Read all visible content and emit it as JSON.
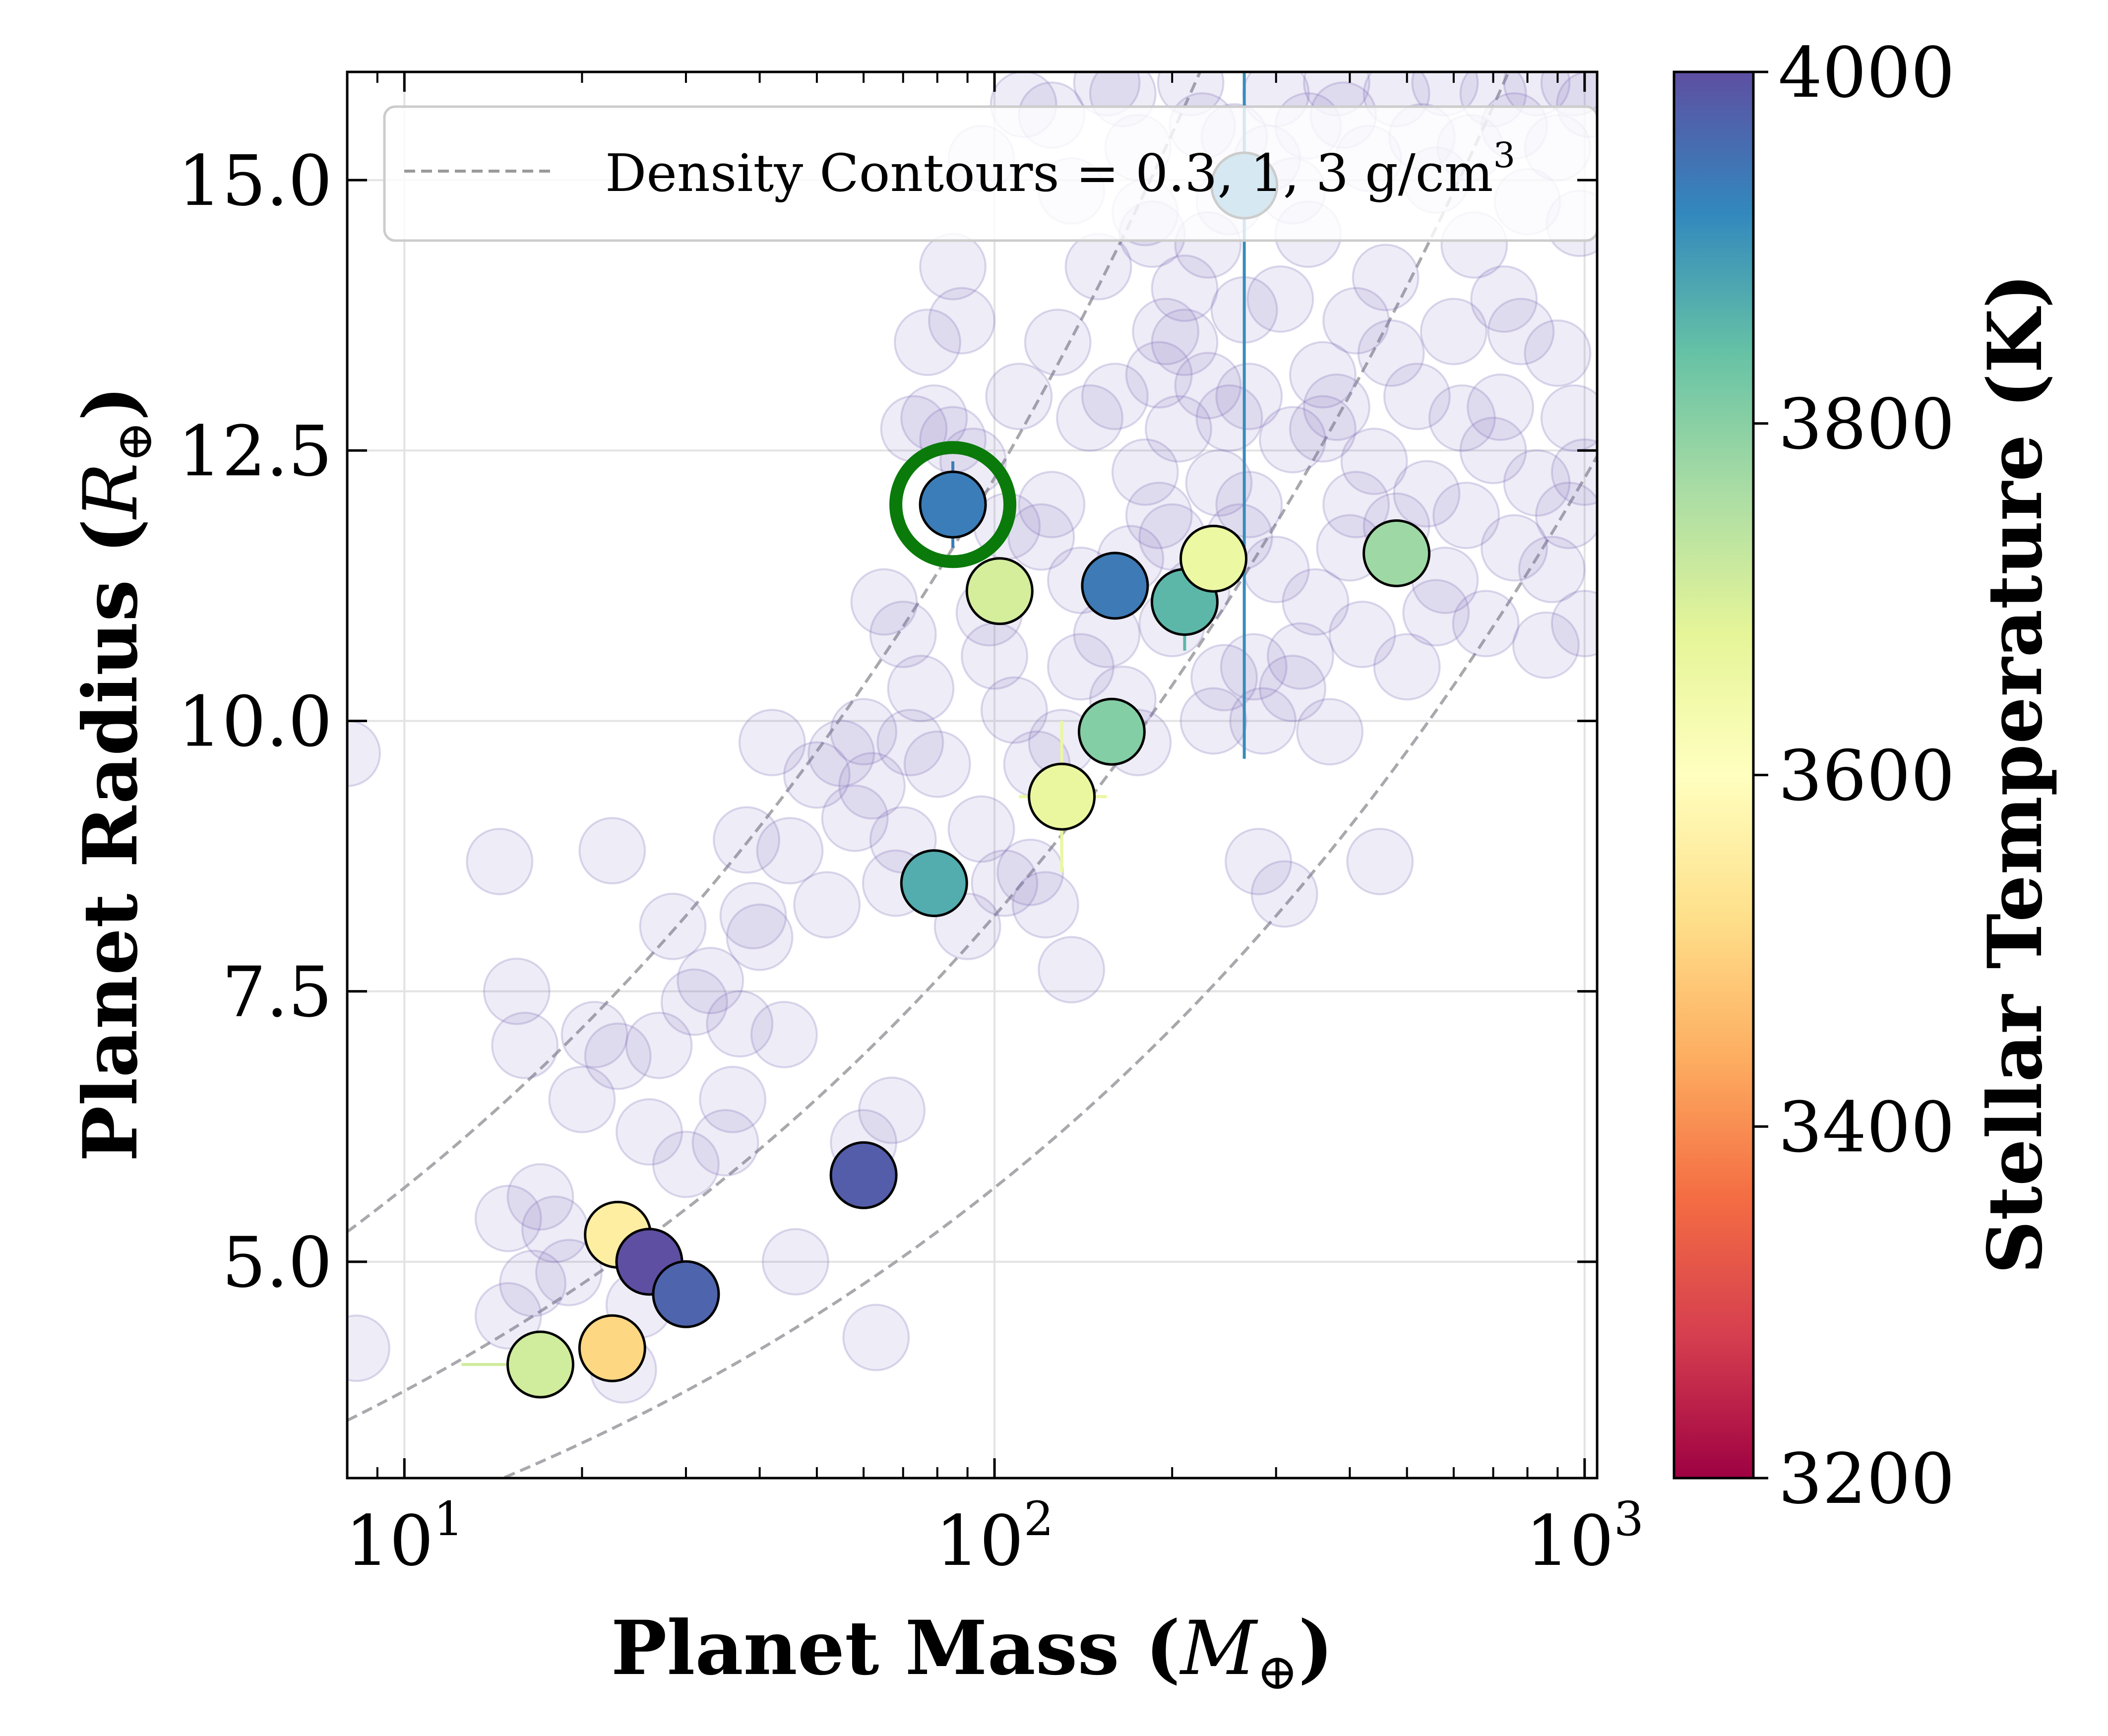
{
  "chart_data": {
    "type": "scatter",
    "xscale": "log",
    "xlim": [
      8,
      1050
    ],
    "ylim": [
      3.0,
      16.0
    ],
    "grid": true,
    "xlabel": {
      "main": "Planet Mass (",
      "var": "M",
      "sub": "⊕",
      "close": ")"
    },
    "ylabel": {
      "main": "Planet Radius (",
      "var": "R",
      "sub": "⊕",
      "close": ")"
    },
    "x_ticks": [
      {
        "value": 10,
        "base": "10",
        "exp": "1"
      },
      {
        "value": 100,
        "base": "10",
        "exp": "2"
      },
      {
        "value": 1000,
        "base": "10",
        "exp": "3"
      }
    ],
    "y_ticks": [
      {
        "value": 5.0,
        "label": "5.0"
      },
      {
        "value": 7.5,
        "label": "7.5"
      },
      {
        "value": 10.0,
        "label": "10.0"
      },
      {
        "value": 12.5,
        "label": "12.5"
      },
      {
        "value": 15.0,
        "label": "15.0"
      }
    ],
    "legend": {
      "position": "top-right",
      "label": "Density Contours = 0.3, 1, 3 g/cm",
      "label_sup": "3"
    },
    "density_contours": [
      0.3,
      1,
      3
    ],
    "colorbar": {
      "label": "Stellar Temperature (K)",
      "min": 3200,
      "max": 4000,
      "ticks": [
        {
          "value": 3200,
          "label": "3200"
        },
        {
          "value": 3400,
          "label": "3400"
        },
        {
          "value": 3600,
          "label": "3600"
        },
        {
          "value": 3800,
          "label": "3800"
        },
        {
          "value": 4000,
          "label": "4000"
        }
      ],
      "colormap": "Spectral",
      "background_color": "#7b6bb8"
    },
    "highlight": {
      "x": 85,
      "y": 12.0,
      "color": "#0a7a0a"
    },
    "series": [
      {
        "name": "Background population",
        "points": [
          [
            8.0,
            9.7
          ],
          [
            8.3,
            4.2
          ],
          [
            14.5,
            8.7
          ],
          [
            15.0,
            5.4
          ],
          [
            15.5,
            7.5
          ],
          [
            16.0,
            7.0
          ],
          [
            16.5,
            4.8
          ],
          [
            17.0,
            5.6
          ],
          [
            18.0,
            5.3
          ],
          [
            20.0,
            6.5
          ],
          [
            21.0,
            7.1
          ],
          [
            22.5,
            8.8
          ],
          [
            23.0,
            6.9
          ],
          [
            23.5,
            4.0
          ],
          [
            25.0,
            4.6
          ],
          [
            27.0,
            7.0
          ],
          [
            28.5,
            8.1
          ],
          [
            31.0,
            7.4
          ],
          [
            33.0,
            7.6
          ],
          [
            35.0,
            6.1
          ],
          [
            37.0,
            7.2
          ],
          [
            38.0,
            8.9
          ],
          [
            39.0,
            8.2
          ],
          [
            40.0,
            8.0
          ],
          [
            42.0,
            9.8
          ],
          [
            44.0,
            7.1
          ],
          [
            46.0,
            5.0
          ],
          [
            50.0,
            9.5
          ],
          [
            55.0,
            9.7
          ],
          [
            58.0,
            9.1
          ],
          [
            60.0,
            6.1
          ],
          [
            62.0,
            9.4
          ],
          [
            63.0,
            4.3
          ],
          [
            65.0,
            11.1
          ],
          [
            67.0,
            6.4
          ],
          [
            68.0,
            8.5
          ],
          [
            70.0,
            8.9
          ],
          [
            72.0,
            9.8
          ],
          [
            73.0,
            12.7
          ],
          [
            75.0,
            10.3
          ],
          [
            77.0,
            13.5
          ],
          [
            79.0,
            12.8
          ],
          [
            80.0,
            9.6
          ],
          [
            85.0,
            14.2
          ],
          [
            88.0,
            13.7
          ],
          [
            90.0,
            8.1
          ],
          [
            92.0,
            12.4
          ],
          [
            95.0,
            9.0
          ],
          [
            98.0,
            11.0
          ],
          [
            100.0,
            10.6
          ],
          [
            104.0,
            8.5
          ],
          [
            105.0,
            11.8
          ],
          [
            108.0,
            10.1
          ],
          [
            112.0,
            15.7
          ],
          [
            115.0,
            8.6
          ],
          [
            118.0,
            9.6
          ],
          [
            120.0,
            11.7
          ],
          [
            122.0,
            8.3
          ],
          [
            125.0,
            12.0
          ],
          [
            128.0,
            13.5
          ],
          [
            130.0,
            9.8
          ],
          [
            135.0,
            7.7
          ],
          [
            140.0,
            11.3
          ],
          [
            145.0,
            12.8
          ],
          [
            150.0,
            14.2
          ],
          [
            155.0,
            10.8
          ],
          [
            160.0,
            13.0
          ],
          [
            165.0,
            15.8
          ],
          [
            170.0,
            11.5
          ],
          [
            175.0,
            9.8
          ],
          [
            180.0,
            12.3
          ],
          [
            185.0,
            14.5
          ],
          [
            190.0,
            11.9
          ],
          [
            195.0,
            13.6
          ],
          [
            200.0,
            10.9
          ],
          [
            205.0,
            12.7
          ],
          [
            210.0,
            14.0
          ],
          [
            220.0,
            11.2
          ],
          [
            225.0,
            15.5
          ],
          [
            230.0,
            13.1
          ],
          [
            240.0,
            12.2
          ],
          [
            245.0,
            10.4
          ],
          [
            250.0,
            14.8
          ],
          [
            260.0,
            11.7
          ],
          [
            265.0,
            13.8
          ],
          [
            270.0,
            12.0
          ],
          [
            280.0,
            8.7
          ],
          [
            285.0,
            10.0
          ],
          [
            290.0,
            15.2
          ],
          [
            300.0,
            11.4
          ],
          [
            305.0,
            13.9
          ],
          [
            310.0,
            8.4
          ],
          [
            320.0,
            12.6
          ],
          [
            330.0,
            10.6
          ],
          [
            340.0,
            14.5
          ],
          [
            350.0,
            11.1
          ],
          [
            360.0,
            13.2
          ],
          [
            370.0,
            9.9
          ],
          [
            380.0,
            12.9
          ],
          [
            390.0,
            15.6
          ],
          [
            400.0,
            11.6
          ],
          [
            410.0,
            13.7
          ],
          [
            420.0,
            10.8
          ],
          [
            440.0,
            12.4
          ],
          [
            450.0,
            8.7
          ],
          [
            460.0,
            14.1
          ],
          [
            480.0,
            11.8
          ],
          [
            500.0,
            10.5
          ],
          [
            520.0,
            13.0
          ],
          [
            540.0,
            12.1
          ],
          [
            560.0,
            15.0
          ],
          [
            580.0,
            11.3
          ],
          [
            600.0,
            13.6
          ],
          [
            620.0,
            12.8
          ],
          [
            650.0,
            14.4
          ],
          [
            680.0,
            10.9
          ],
          [
            700.0,
            12.5
          ],
          [
            730.0,
            13.9
          ],
          [
            760.0,
            11.6
          ],
          [
            800.0,
            14.8
          ],
          [
            830.0,
            12.2
          ],
          [
            860.0,
            10.7
          ],
          [
            900.0,
            13.4
          ],
          [
            940.0,
            11.9
          ],
          [
            980.0,
            14.6
          ],
          [
            1000.0,
            12.3
          ],
          [
            1020.0,
            15.7
          ],
          [
            155.0,
            15.9
          ],
          [
            175.0,
            15.3
          ],
          [
            215.0,
            15.9
          ],
          [
            255.0,
            15.4
          ],
          [
            300.0,
            15.8
          ],
          [
            340.0,
            15.5
          ],
          [
            380.0,
            15.9
          ],
          [
            430.0,
            15.2
          ],
          [
            480.0,
            15.8
          ],
          [
            530.0,
            15.4
          ],
          [
            580.0,
            15.9
          ],
          [
            640.0,
            15.3
          ],
          [
            700.0,
            15.8
          ],
          [
            760.0,
            15.5
          ],
          [
            830.0,
            15.9
          ],
          [
            900.0,
            15.3
          ],
          [
            960.0,
            15.9
          ],
          [
            190.0,
            13.2
          ],
          [
            230.0,
            14.4
          ],
          [
            270.0,
            13.0
          ],
          [
            320.0,
            14.9
          ],
          [
            360.0,
            12.7
          ],
          [
            410.0,
            12.0
          ],
          [
            470.0,
            13.4
          ],
          [
            560.0,
            11.0
          ],
          [
            630.0,
            11.9
          ],
          [
            720.0,
            12.9
          ],
          [
            780.0,
            13.6
          ],
          [
            880.0,
            11.4
          ],
          [
            960.0,
            12.8
          ],
          [
            1000.0,
            10.9
          ],
          [
            140.0,
            10.5
          ],
          [
            165.0,
            10.2
          ],
          [
            200.0,
            11.7
          ],
          [
            235.0,
            10.0
          ],
          [
            275.0,
            10.5
          ],
          [
            320.0,
            10.3
          ],
          [
            250.0,
            12.8
          ],
          [
            210.0,
            13.5
          ],
          [
            180.0,
            14.7
          ],
          [
            135.0,
            14.9
          ],
          [
            125.0,
            15.6
          ],
          [
            95.0,
            15.2
          ],
          [
            110.0,
            13.0
          ],
          [
            85.0,
            12.6
          ],
          [
            70.0,
            10.8
          ],
          [
            60.0,
            9.9
          ],
          [
            52.0,
            8.3
          ],
          [
            45.0,
            8.8
          ],
          [
            36.0,
            6.5
          ],
          [
            30.0,
            5.9
          ],
          [
            26.0,
            6.2
          ],
          [
            19.0,
            4.9
          ],
          [
            15.0,
            4.5
          ]
        ],
        "color": "#7b6bb8"
      },
      {
        "name": "Highlighted planets",
        "points": [
          {
            "x": 85,
            "y": 12.0,
            "temp": 3935,
            "xerr": [
              5,
              5
            ],
            "yerr": [
              0.4,
              0.4
            ]
          },
          {
            "x": 102,
            "y": 11.2,
            "temp": 3705,
            "xerr": [
              12,
              12
            ],
            "yerr": [
              0.2,
              0.2
            ]
          },
          {
            "x": 160,
            "y": 11.25,
            "temp": 3940,
            "xerr": [
              0,
              0
            ],
            "yerr": [
              0,
              0
            ]
          },
          {
            "x": 210,
            "y": 11.1,
            "temp": 3855,
            "xerr": [
              0,
              0
            ],
            "yerr": [
              0.45,
              0
            ]
          },
          {
            "x": 235,
            "y": 11.5,
            "temp": 3660,
            "xerr": [
              0,
              0
            ],
            "yerr": [
              0,
              0
            ]
          },
          {
            "x": 480,
            "y": 11.55,
            "temp": 3775,
            "xerr": [
              0,
              0
            ],
            "yerr": [
              0,
              0
            ]
          },
          {
            "x": 265,
            "y": 14.95,
            "temp": 3915,
            "xerr": [
              0,
              0
            ],
            "yerr": [
              5.3,
              4
            ]
          },
          {
            "x": 158,
            "y": 9.9,
            "temp": 3805,
            "xerr": [
              0,
              0
            ],
            "yerr": [
              0,
              0
            ]
          },
          {
            "x": 130,
            "y": 9.3,
            "temp": 3665,
            "xerr": [
              20,
              25
            ],
            "yerr": [
              0.7,
              0.7
            ]
          },
          {
            "x": 79,
            "y": 8.5,
            "temp": 3870,
            "xerr": [
              0,
              0
            ],
            "yerr": [
              0,
              0
            ]
          },
          {
            "x": 60,
            "y": 5.8,
            "temp": 3980,
            "xerr": [
              6,
              0
            ],
            "yerr": [
              0,
              0
            ]
          },
          {
            "x": 23,
            "y": 5.25,
            "temp": 3555,
            "xerr": [
              0,
              0
            ],
            "yerr": [
              0,
              0
            ]
          },
          {
            "x": 26,
            "y": 5.0,
            "temp": 4000,
            "xerr": [
              0,
              0
            ],
            "yerr": [
              0,
              0
            ]
          },
          {
            "x": 30,
            "y": 4.7,
            "temp": 3970,
            "xerr": [
              0,
              0
            ],
            "yerr": [
              0,
              0
            ]
          },
          {
            "x": 17,
            "y": 4.05,
            "temp": 3710,
            "xerr": [
              4.5,
              0
            ],
            "yerr": [
              0,
              0
            ]
          },
          {
            "x": 22.5,
            "y": 4.2,
            "temp": 3505,
            "xerr": [
              0,
              0
            ],
            "yerr": [
              0,
              0
            ]
          }
        ]
      }
    ]
  }
}
